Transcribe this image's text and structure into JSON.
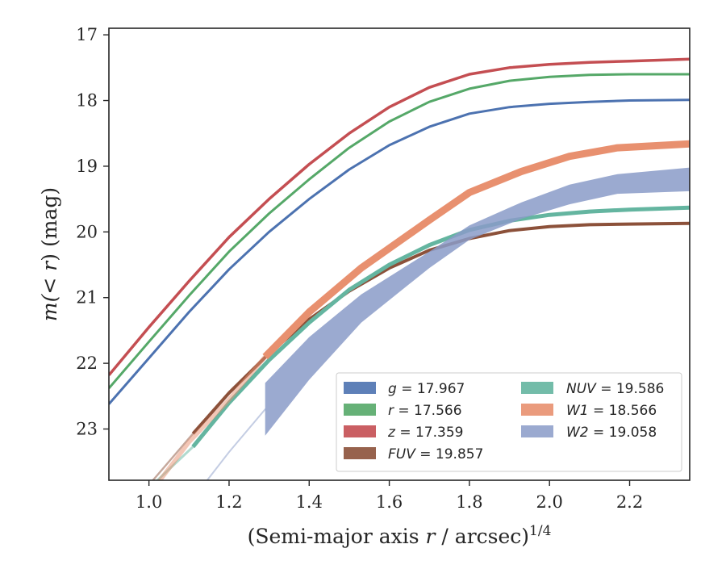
{
  "chart_data": {
    "type": "line",
    "xlabel": "(Semi-major axis r / arcsec)",
    "xlabel_var": "r",
    "xlabel_prefix": "(Semi-major axis ",
    "xlabel_suffix": " / arcsec)",
    "xlabel_sup": "1/4",
    "ylabel_prefix": "m(",
    "ylabel_var": "< r",
    "ylabel_suffix": ") (mag)",
    "xlim": [
      0.9,
      2.35
    ],
    "ylim": [
      23.78,
      16.9
    ],
    "y_inverted": true,
    "grid": false,
    "legend_position": "lower-right",
    "xticks": [
      "1.0",
      "1.2",
      "1.4",
      "1.6",
      "1.8",
      "2.0",
      "2.2"
    ],
    "yticks": [
      "17",
      "18",
      "19",
      "20",
      "21",
      "22",
      "23"
    ],
    "series": [
      {
        "name": "g",
        "label_value": "= 17.967",
        "color": "#4c72b0",
        "width": 3,
        "points": [
          [
            0.9,
            22.62
          ],
          [
            1.0,
            21.92
          ],
          [
            1.1,
            21.22
          ],
          [
            1.2,
            20.57
          ],
          [
            1.3,
            20.0
          ],
          [
            1.4,
            19.5
          ],
          [
            1.5,
            19.05
          ],
          [
            1.6,
            18.68
          ],
          [
            1.7,
            18.4
          ],
          [
            1.8,
            18.2
          ],
          [
            1.9,
            18.1
          ],
          [
            2.0,
            18.05
          ],
          [
            2.1,
            18.02
          ],
          [
            2.2,
            18.0
          ],
          [
            2.35,
            17.99
          ]
        ],
        "faint": [
          [
            0.9,
            22.62
          ],
          [
            1.0,
            21.92
          ],
          [
            1.1,
            21.22
          ],
          [
            1.2,
            20.57
          ],
          [
            1.3,
            20.0
          ]
        ]
      },
      {
        "name": "r",
        "label_value": "= 17.566",
        "color": "#55a868",
        "width": 3,
        "points": [
          [
            0.9,
            22.38
          ],
          [
            1.0,
            21.67
          ],
          [
            1.1,
            20.97
          ],
          [
            1.2,
            20.3
          ],
          [
            1.3,
            19.72
          ],
          [
            1.4,
            19.2
          ],
          [
            1.5,
            18.72
          ],
          [
            1.6,
            18.32
          ],
          [
            1.7,
            18.02
          ],
          [
            1.8,
            17.82
          ],
          [
            1.9,
            17.7
          ],
          [
            2.0,
            17.64
          ],
          [
            2.1,
            17.61
          ],
          [
            2.2,
            17.6
          ],
          [
            2.35,
            17.6
          ]
        ]
      },
      {
        "name": "z",
        "label_value": "= 17.359",
        "color": "#c44e52",
        "width": 3.5,
        "points": [
          [
            0.9,
            22.18
          ],
          [
            1.0,
            21.45
          ],
          [
            1.1,
            20.75
          ],
          [
            1.2,
            20.08
          ],
          [
            1.3,
            19.5
          ],
          [
            1.4,
            18.97
          ],
          [
            1.5,
            18.5
          ],
          [
            1.6,
            18.1
          ],
          [
            1.7,
            17.8
          ],
          [
            1.8,
            17.6
          ],
          [
            1.9,
            17.5
          ],
          [
            2.0,
            17.45
          ],
          [
            2.1,
            17.42
          ],
          [
            2.2,
            17.4
          ],
          [
            2.35,
            17.37
          ]
        ]
      },
      {
        "name": "FUV",
        "label_value": "= 19.857",
        "color": "#8c513a",
        "width": 4,
        "points": [
          [
            1.11,
            23.07
          ],
          [
            1.2,
            22.45
          ],
          [
            1.3,
            21.85
          ],
          [
            1.4,
            21.33
          ],
          [
            1.5,
            20.9
          ],
          [
            1.6,
            20.55
          ],
          [
            1.7,
            20.28
          ],
          [
            1.8,
            20.1
          ],
          [
            1.9,
            19.98
          ],
          [
            2.0,
            19.92
          ],
          [
            2.1,
            19.89
          ],
          [
            2.2,
            19.88
          ],
          [
            2.35,
            19.87
          ]
        ],
        "faint": [
          [
            0.9,
            24.4
          ],
          [
            1.0,
            23.85
          ],
          [
            1.11,
            23.07
          ]
        ]
      },
      {
        "name": "NUV",
        "label_value": "= 19.586",
        "color": "#64b5a0",
        "width": 5,
        "points": [
          [
            1.11,
            23.27
          ],
          [
            1.2,
            22.6
          ],
          [
            1.3,
            21.95
          ],
          [
            1.4,
            21.38
          ],
          [
            1.5,
            20.88
          ],
          [
            1.6,
            20.5
          ],
          [
            1.7,
            20.2
          ],
          [
            1.8,
            19.97
          ],
          [
            1.9,
            19.83
          ],
          [
            2.0,
            19.74
          ],
          [
            2.1,
            19.69
          ],
          [
            2.2,
            19.66
          ],
          [
            2.35,
            19.63
          ]
        ],
        "faint": [
          [
            0.9,
            24.5
          ],
          [
            1.0,
            23.9
          ],
          [
            1.11,
            23.27
          ]
        ]
      },
      {
        "name": "W1",
        "label_value": "= 18.566",
        "color": "#e8906f",
        "width": 9,
        "points": [
          [
            1.29,
            21.9
          ],
          [
            1.4,
            21.22
          ],
          [
            1.53,
            20.55
          ],
          [
            1.7,
            19.82
          ],
          [
            1.8,
            19.4
          ],
          [
            1.93,
            19.08
          ],
          [
            2.05,
            18.85
          ],
          [
            2.17,
            18.72
          ],
          [
            2.35,
            18.66
          ]
        ],
        "faint": [
          [
            1.0,
            24.0
          ],
          [
            1.1,
            23.2
          ],
          [
            1.2,
            22.55
          ],
          [
            1.29,
            21.9
          ]
        ]
      },
      {
        "name": "W2",
        "label_value": "= 19.058",
        "color": "#8a9bc8",
        "band": true,
        "upper": [
          [
            1.29,
            22.3
          ],
          [
            1.4,
            21.6
          ],
          [
            1.53,
            20.95
          ],
          [
            1.7,
            20.3
          ],
          [
            1.8,
            19.9
          ],
          [
            1.93,
            19.55
          ],
          [
            2.05,
            19.28
          ],
          [
            2.17,
            19.12
          ],
          [
            2.35,
            19.02
          ]
        ],
        "lower": [
          [
            1.29,
            23.1
          ],
          [
            1.4,
            22.25
          ],
          [
            1.53,
            21.38
          ],
          [
            1.7,
            20.55
          ],
          [
            1.8,
            20.12
          ],
          [
            1.93,
            19.8
          ],
          [
            2.05,
            19.58
          ],
          [
            2.17,
            19.42
          ],
          [
            2.35,
            19.38
          ]
        ],
        "faint": [
          [
            1.13,
            23.9
          ],
          [
            1.2,
            23.35
          ],
          [
            1.29,
            22.7
          ]
        ]
      }
    ]
  }
}
